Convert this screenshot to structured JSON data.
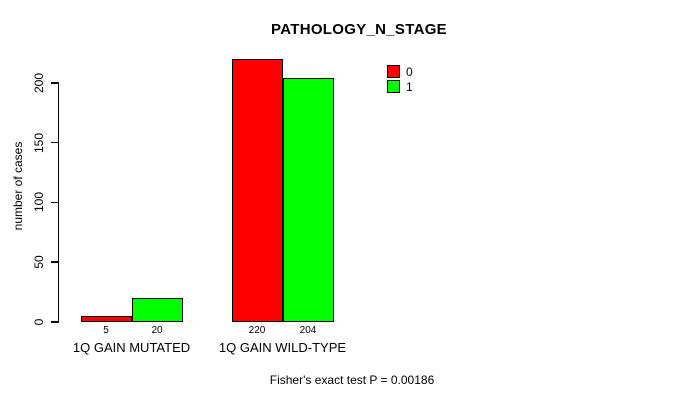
{
  "chart_data": {
    "type": "bar",
    "title": "PATHOLOGY_N_STAGE",
    "categories": [
      "1Q GAIN MUTATED",
      "1Q GAIN WILD-TYPE"
    ],
    "series": [
      {
        "name": "0",
        "color": "#ff0000",
        "values": [
          5,
          220
        ]
      },
      {
        "name": "1",
        "color": "#00ff00",
        "values": [
          20,
          204
        ]
      }
    ],
    "xlabel": "",
    "ylabel": "number of cases",
    "ylim": [
      0,
      200
    ],
    "yticks": [
      0,
      50,
      100,
      150,
      200
    ],
    "bar_value_labels": [
      [
        "5",
        "20"
      ],
      [
        "220",
        "204"
      ]
    ],
    "grid": false,
    "legend_position": "top-right",
    "footnote": "Fisher's exact test P = 0.00186"
  }
}
